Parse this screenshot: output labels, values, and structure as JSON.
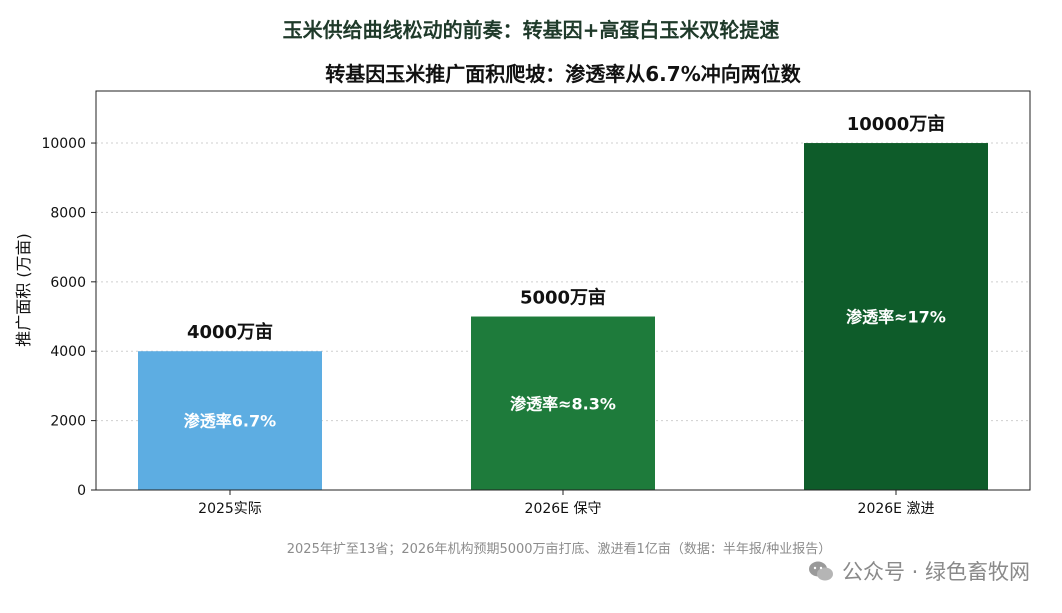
{
  "suptitle": "玉米供给曲线松动的前奏：转基因+高蛋白玉米双轮提速",
  "footnote": "2025年扩至13省；2026年机构预期5000万亩打底、激进看1亿亩（数据：半年报/种业报告）",
  "watermark": "公众号 · 绿色畜牧网",
  "chart_data": {
    "type": "bar",
    "title": "转基因玉米推广面积爬坡：渗透率从6.7%冲向两位数",
    "ylabel": "推广面积 (万亩)",
    "xlabel": "",
    "ylim": [
      0,
      11500
    ],
    "yticks": [
      0,
      2000,
      4000,
      6000,
      8000,
      10000
    ],
    "grid": true,
    "categories": [
      "2025实际",
      "2026E 保守",
      "2026E 激进"
    ],
    "values": [
      4000,
      5000,
      10000
    ],
    "value_labels": [
      "4000万亩",
      "5000万亩",
      "10000万亩"
    ],
    "inner_labels": [
      "渗透率6.7%",
      "渗透率≈8.3%",
      "渗透率≈17%"
    ],
    "colors": [
      "#5dade2",
      "#1e7b3b",
      "#0e5c2a"
    ]
  }
}
